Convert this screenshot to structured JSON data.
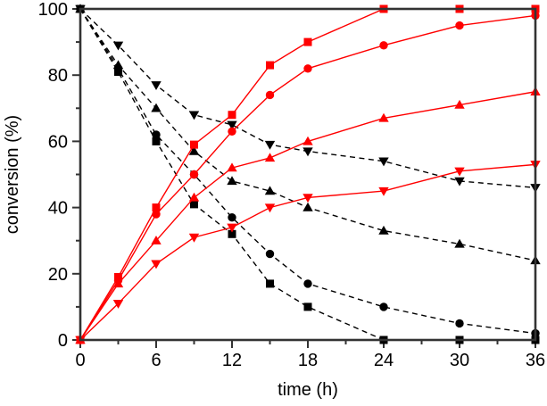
{
  "figure": {
    "background": "#ffffff",
    "axis_color": "#333333"
  },
  "chart_data": {
    "type": "line",
    "title": "",
    "xlabel": "time (h)",
    "ylabel": "conversion (%)",
    "xlim": [
      0,
      36
    ],
    "ylim": [
      0,
      100
    ],
    "x_ticks": [
      0,
      6,
      12,
      18,
      24,
      30,
      36
    ],
    "x_minor_ticks": [
      3,
      9,
      15,
      21,
      27,
      33
    ],
    "y_ticks": [
      0,
      20,
      40,
      60,
      80,
      100
    ],
    "y_minor_ticks": [
      10,
      30,
      50,
      70,
      90
    ],
    "grid": false,
    "legend": "none",
    "x": [
      0,
      3,
      6,
      9,
      12,
      15,
      18,
      24,
      30,
      36
    ],
    "series": [
      {
        "name": "black-square-dashed",
        "color": "#000000",
        "line": "dashed",
        "marker": "square",
        "values": [
          100,
          81,
          60,
          41,
          32,
          17,
          10,
          0,
          0,
          0
        ]
      },
      {
        "name": "black-circle-dashed",
        "color": "#000000",
        "line": "dashed",
        "marker": "circle",
        "values": [
          100,
          82,
          62,
          50,
          37,
          26,
          17,
          10,
          5,
          2
        ]
      },
      {
        "name": "black-triangle-up-dashed",
        "color": "#000000",
        "line": "dashed",
        "marker": "triangle-up",
        "values": [
          100,
          83,
          70,
          57,
          48,
          45,
          40,
          33,
          29,
          24
        ]
      },
      {
        "name": "black-triangle-down-dashed",
        "color": "#000000",
        "line": "dashed",
        "marker": "triangle-down",
        "values": [
          100,
          89,
          77,
          68,
          65,
          59,
          57,
          54,
          48,
          46
        ]
      },
      {
        "name": "red-square-solid",
        "color": "#ff0000",
        "line": "solid",
        "marker": "square",
        "values": [
          0,
          19,
          40,
          59,
          68,
          83,
          90,
          100,
          100,
          100
        ]
      },
      {
        "name": "red-circle-solid",
        "color": "#ff0000",
        "line": "solid",
        "marker": "circle",
        "values": [
          0,
          18,
          38,
          50,
          63,
          74,
          82,
          89,
          95,
          98
        ]
      },
      {
        "name": "red-triangle-up-solid",
        "color": "#ff0000",
        "line": "solid",
        "marker": "triangle-up",
        "values": [
          0,
          17,
          30,
          43,
          52,
          55,
          60,
          67,
          71,
          75
        ]
      },
      {
        "name": "red-triangle-down-solid",
        "color": "#ff0000",
        "line": "solid",
        "marker": "triangle-down",
        "values": [
          0,
          11,
          23,
          31,
          34,
          40,
          43,
          45,
          51,
          53
        ]
      }
    ]
  }
}
